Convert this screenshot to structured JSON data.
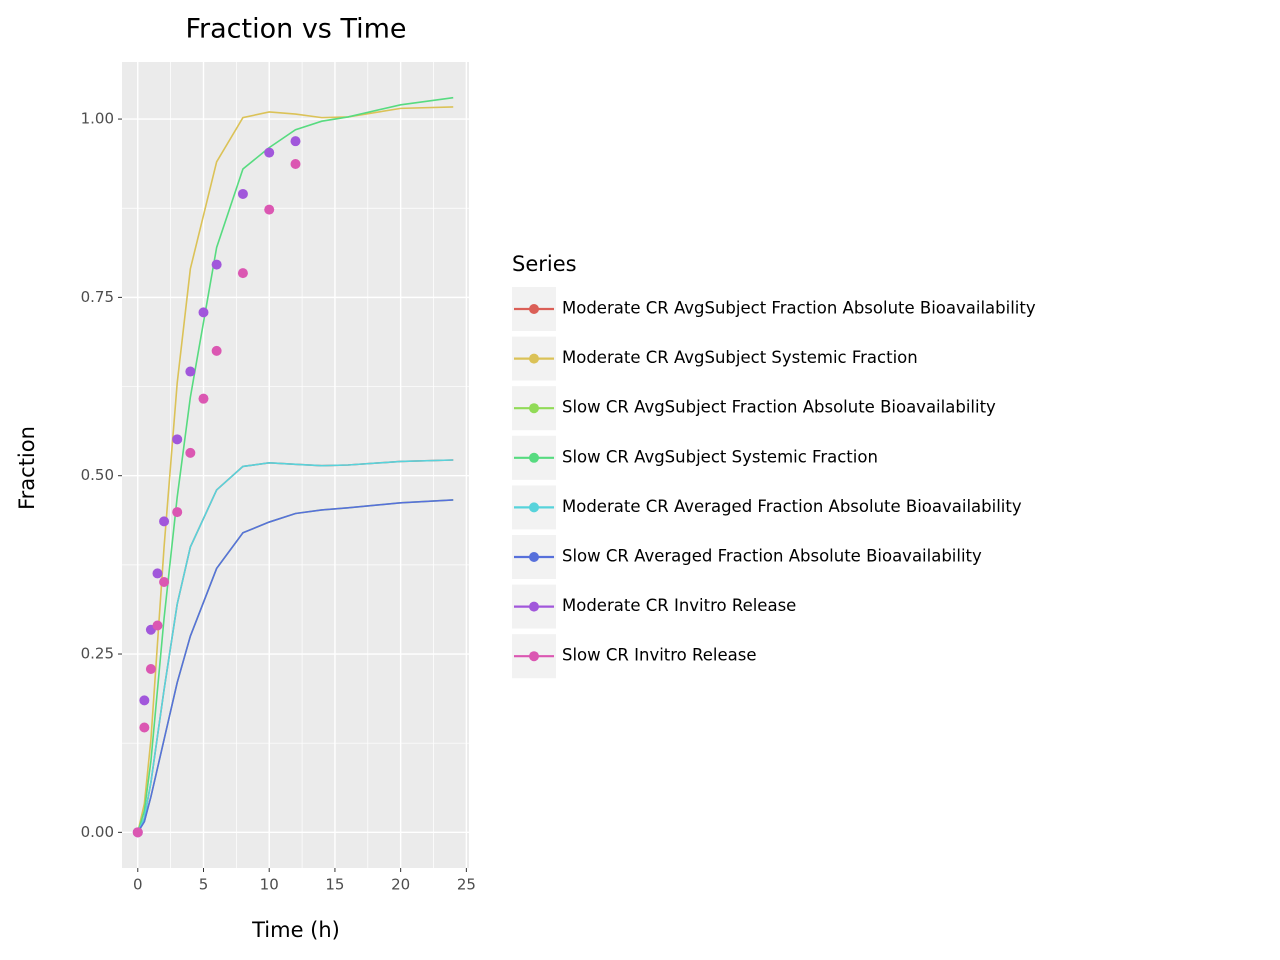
{
  "chart_data": {
    "type": "line",
    "title": "Fraction vs Time",
    "x_label": "Time (h)",
    "y_label": "Fraction",
    "legend_title": "Series",
    "xlim": [
      -1.2,
      25.2
    ],
    "ylim": [
      -0.05,
      1.08
    ],
    "xticks": [
      0,
      5,
      10,
      15,
      20,
      25
    ],
    "yticks": [
      {
        "value": 0,
        "label": "0.00"
      },
      {
        "value": 0.25,
        "label": "0.25"
      },
      {
        "value": 0.5,
        "label": "0.50"
      },
      {
        "value": 0.75,
        "label": "0.75"
      },
      {
        "value": 1,
        "label": "1.00"
      }
    ],
    "grid": true,
    "legend_position": "right",
    "series": [
      {
        "name": "Moderate CR AvgSubject Fraction Absolute Bioavailability",
        "color": "#db5f57",
        "mode": "line",
        "x": [
          0,
          0.5,
          1,
          2,
          3,
          4,
          6,
          8,
          10,
          12,
          14,
          16,
          20,
          24
        ],
        "values": [
          0,
          0.02,
          0.07,
          0.2,
          0.32,
          0.4,
          0.48,
          0.513,
          0.518,
          0.516,
          0.514,
          0.515,
          0.52,
          0.522
        ]
      },
      {
        "name": "Moderate CR AvgSubject Systemic Fraction",
        "color": "#dbc257",
        "mode": "line",
        "x": [
          0,
          0.5,
          1,
          2,
          3,
          4,
          6,
          8,
          10,
          12,
          14,
          16,
          20,
          24
        ],
        "values": [
          0,
          0.04,
          0.13,
          0.4,
          0.63,
          0.79,
          0.94,
          1.002,
          1.01,
          1.007,
          1.002,
          1.003,
          1.015,
          1.017
        ]
      },
      {
        "name": "Slow CR AvgSubject Fraction Absolute Bioavailability",
        "color": "#91db57",
        "mode": "line",
        "x": [
          0,
          0.5,
          1,
          2,
          3,
          4,
          6,
          8,
          10,
          12,
          14,
          16,
          20,
          24
        ],
        "values": [
          0,
          0.015,
          0.05,
          0.13,
          0.21,
          0.275,
          0.37,
          0.42,
          0.435,
          0.447,
          0.452,
          0.455,
          0.462,
          0.466
        ]
      },
      {
        "name": "Slow CR AvgSubject Systemic Fraction",
        "color": "#57db80",
        "mode": "line",
        "x": [
          0,
          0.5,
          1,
          2,
          3,
          4,
          6,
          8,
          10,
          12,
          14,
          16,
          20,
          24
        ],
        "values": [
          0,
          0.03,
          0.1,
          0.3,
          0.47,
          0.61,
          0.82,
          0.93,
          0.96,
          0.985,
          0.997,
          1.003,
          1.02,
          1.03
        ]
      },
      {
        "name": "Moderate CR Averaged Fraction Absolute Bioavailability",
        "color": "#57d3db",
        "mode": "line",
        "x": [
          0,
          0.5,
          1,
          2,
          3,
          4,
          6,
          8,
          10,
          12,
          14,
          16,
          20,
          24
        ],
        "values": [
          0,
          0.02,
          0.07,
          0.2,
          0.32,
          0.4,
          0.48,
          0.513,
          0.518,
          0.516,
          0.514,
          0.515,
          0.52,
          0.522
        ]
      },
      {
        "name": "Slow CR Averaged Fraction Absolute Bioavailability",
        "color": "#5770db",
        "mode": "line",
        "x": [
          0,
          0.5,
          1,
          2,
          3,
          4,
          6,
          8,
          10,
          12,
          14,
          16,
          20,
          24
        ],
        "values": [
          0,
          0.015,
          0.05,
          0.13,
          0.21,
          0.275,
          0.37,
          0.42,
          0.435,
          0.447,
          0.452,
          0.455,
          0.462,
          0.466
        ]
      },
      {
        "name": "Moderate CR Invitro Release",
        "color": "#a157db",
        "mode": "point",
        "x": [
          0,
          0.5,
          1,
          1.5,
          2,
          3,
          4,
          5,
          6,
          8,
          10,
          12
        ],
        "values": [
          0,
          0.185,
          0.284,
          0.363,
          0.436,
          0.551,
          0.646,
          0.729,
          0.796,
          0.895,
          0.953,
          0.969
        ]
      },
      {
        "name": "Slow CR Invitro Release",
        "color": "#db57b2",
        "mode": "point",
        "x": [
          0,
          0.5,
          1,
          1.5,
          2,
          3,
          4,
          5,
          6,
          8,
          10,
          12
        ],
        "values": [
          0,
          0.147,
          0.229,
          0.29,
          0.351,
          0.449,
          0.532,
          0.608,
          0.675,
          0.784,
          0.873,
          0.937
        ]
      }
    ]
  }
}
